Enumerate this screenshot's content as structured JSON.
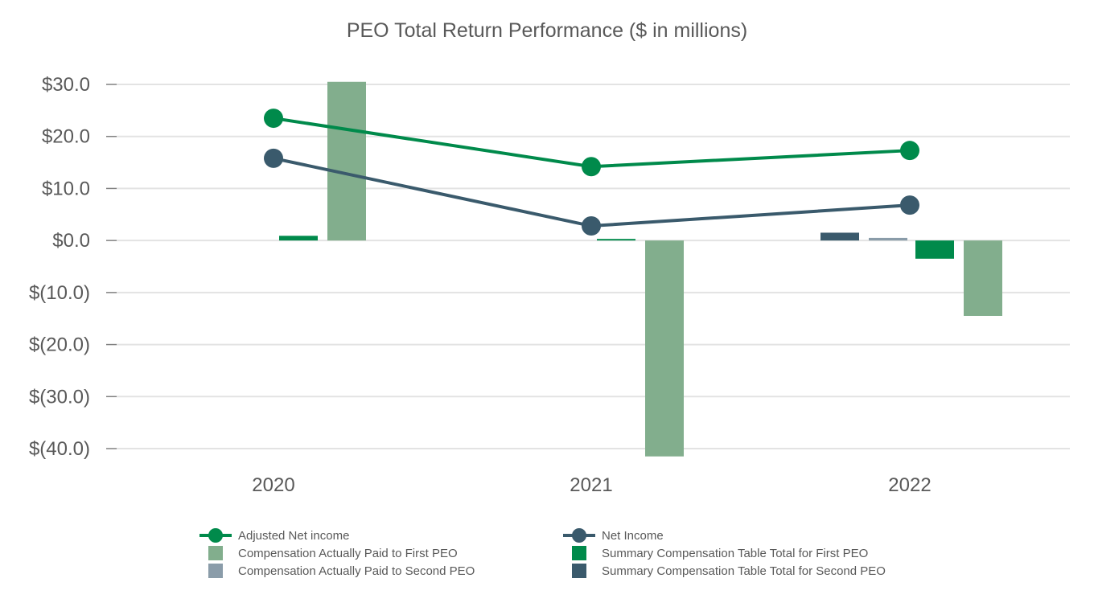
{
  "chart_data": {
    "type": "bar",
    "title": "PEO Total Return Performance ($ in millions)",
    "xlabel": "",
    "ylabel": "",
    "ylim": [
      -40,
      30
    ],
    "yticks": [
      30,
      20,
      10,
      0,
      -10,
      -20,
      -30,
      -40
    ],
    "ytick_labels": [
      "$30.0",
      "$20.0",
      "$10.0",
      "$0.0",
      "$(10.0)",
      "$(20.0)",
      "$(30.0)",
      "$(40.0)"
    ],
    "categories": [
      "2020",
      "2021",
      "2022"
    ],
    "grid": true,
    "legend_position": "bottom",
    "bar_series": [
      {
        "name": "Summary Compensation Table Total for Second PEO",
        "color": "#3a5a6c",
        "values": [
          null,
          null,
          1.5
        ]
      },
      {
        "name": "Compensation Actually Paid to Second  PEO",
        "color": "#8a9ca9",
        "values": [
          null,
          null,
          0.5
        ]
      },
      {
        "name": "Summary Compensation Table Total for First PEO",
        "color": "#008a4b",
        "values": [
          0.9,
          0.3,
          -3.5
        ]
      },
      {
        "name": "Compensation Actually Paid to First PEO",
        "color": "#82ae8d",
        "values": [
          30.5,
          -41.5,
          -14.5
        ]
      }
    ],
    "line_series": [
      {
        "name": "Adjusted Net income",
        "color": "#008a4b",
        "values": [
          23.5,
          14.2,
          17.3
        ]
      },
      {
        "name": "Net Income",
        "color": "#3a5a6c",
        "values": [
          15.8,
          2.8,
          6.8
        ]
      }
    ]
  },
  "legend": {
    "items": [
      {
        "label": "Adjusted Net income",
        "kind": "line",
        "color": "#008a4b"
      },
      {
        "label": "Net Income",
        "kind": "line",
        "color": "#3a5a6c"
      },
      {
        "label": "Compensation Actually Paid to First PEO",
        "kind": "box",
        "color": "#82ae8d"
      },
      {
        "label": "Summary Compensation Table Total for First PEO",
        "kind": "box",
        "color": "#008a4b"
      },
      {
        "label": "Compensation Actually Paid to Second  PEO",
        "kind": "box",
        "color": "#8a9ca9"
      },
      {
        "label": "Summary Compensation Table Total for Second PEO",
        "kind": "box",
        "color": "#3a5a6c"
      }
    ]
  }
}
